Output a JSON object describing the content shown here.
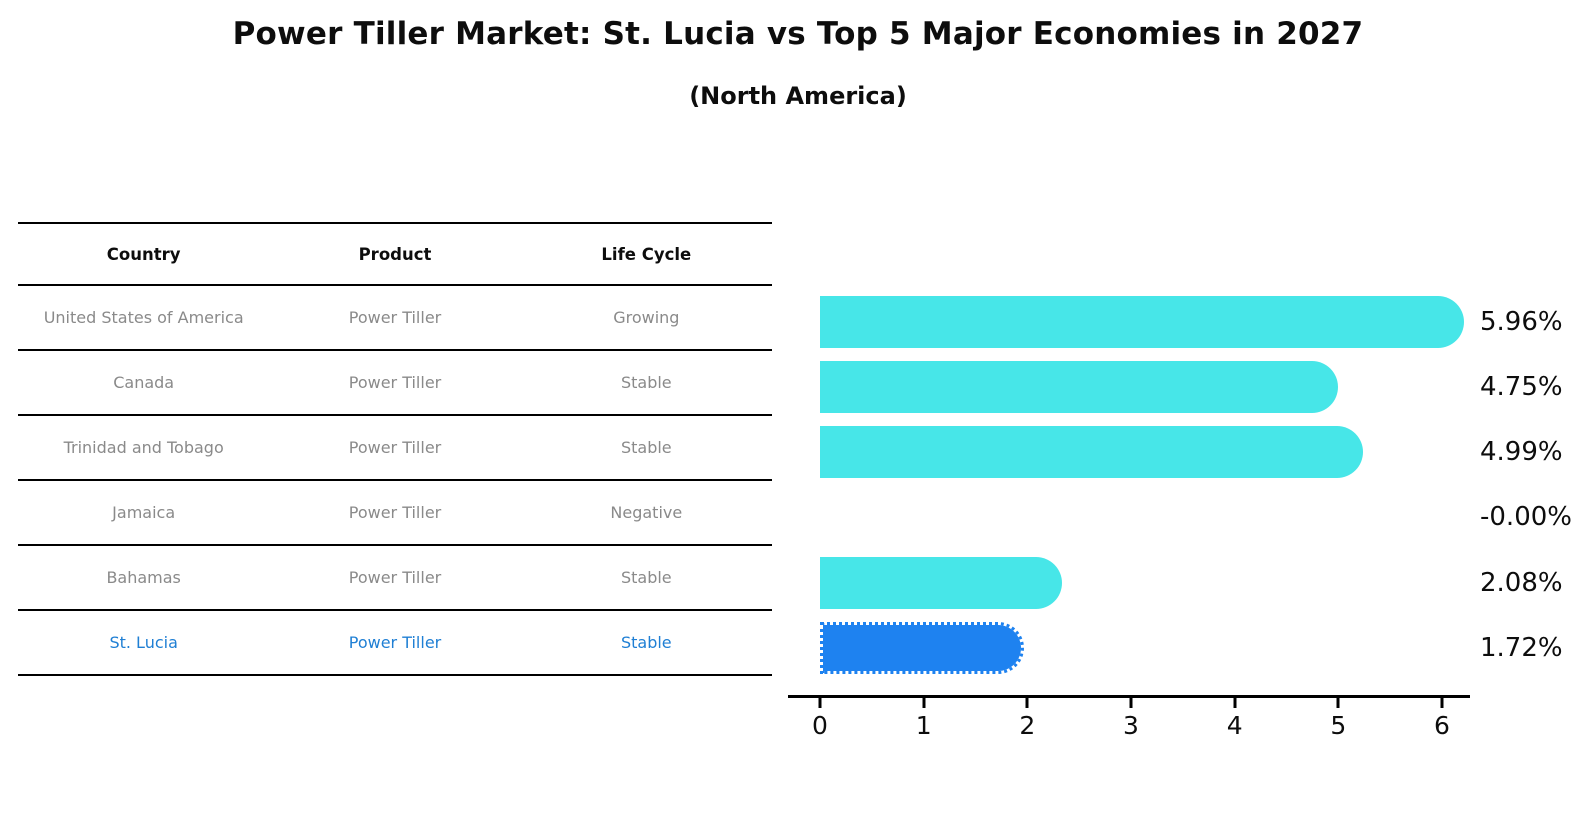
{
  "title": "Power Tiller Market: St. Lucia vs Top 5 Major Economies in 2027",
  "subtitle": "(North America)",
  "table": {
    "headers": [
      "Country",
      "Product",
      "Life Cycle"
    ],
    "rows": [
      {
        "country": "United States of America",
        "product": "Power Tiller",
        "life_cycle": "Growing",
        "highlight": false
      },
      {
        "country": "Canada",
        "product": "Power Tiller",
        "life_cycle": "Stable",
        "highlight": false
      },
      {
        "country": "Trinidad and Tobago",
        "product": "Power Tiller",
        "life_cycle": "Stable",
        "highlight": false
      },
      {
        "country": "Jamaica",
        "product": "Power Tiller",
        "life_cycle": "Negative",
        "highlight": false
      },
      {
        "country": "Bahamas",
        "product": "Power Tiller",
        "life_cycle": "Stable",
        "highlight": false
      },
      {
        "country": "St. Lucia",
        "product": "Power Tiller",
        "life_cycle": "Stable",
        "highlight": true
      }
    ]
  },
  "chart_data": {
    "type": "bar",
    "orientation": "horizontal",
    "title": "Power Tiller Market: St. Lucia vs Top 5 Major Economies in 2027",
    "subtitle": "(North America)",
    "categories": [
      "United States of America",
      "Canada",
      "Trinidad and Tobago",
      "Jamaica",
      "Bahamas",
      "St. Lucia"
    ],
    "values": [
      5.96,
      4.75,
      4.99,
      -0.0,
      2.08,
      1.72
    ],
    "value_labels": [
      "5.96%",
      "4.75%",
      "4.99%",
      "-0.00%",
      "2.08%",
      "1.72%"
    ],
    "xlim": [
      0,
      6
    ],
    "xticks": [
      "0",
      "1",
      "2",
      "3",
      "4",
      "5",
      "6"
    ],
    "grid": false,
    "legend": false,
    "bar_color": "#47e6e8",
    "highlight_color": "#1e82f0",
    "highlight_index": 5,
    "highlight_text_color": "#1f7fd4",
    "row_text_color": "#8a8a8a"
  }
}
